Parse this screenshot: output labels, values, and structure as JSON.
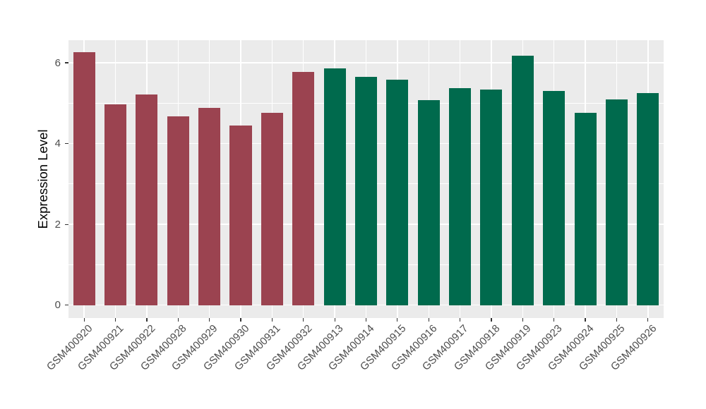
{
  "chart_data": {
    "type": "bar",
    "title": "",
    "ylabel": "Expression Level",
    "xlabel": "",
    "categories": [
      "GSM400920",
      "GSM400921",
      "GSM400922",
      "GSM400928",
      "GSM400929",
      "GSM400930",
      "GSM400931",
      "GSM400932",
      "GSM400913",
      "GSM400914",
      "GSM400915",
      "GSM400916",
      "GSM400917",
      "GSM400918",
      "GSM400919",
      "GSM400923",
      "GSM400924",
      "GSM400925",
      "GSM400926"
    ],
    "values": [
      6.26,
      4.97,
      5.22,
      4.68,
      4.89,
      4.45,
      4.76,
      5.77,
      5.87,
      5.65,
      5.59,
      5.07,
      5.38,
      5.34,
      6.18,
      5.31,
      4.77,
      5.1,
      5.25
    ],
    "bar_groups": [
      "group1",
      "group1",
      "group1",
      "group1",
      "group1",
      "group1",
      "group1",
      "group1",
      "group2",
      "group2",
      "group2",
      "group2",
      "group2",
      "group2",
      "group2",
      "group2",
      "group2",
      "group2",
      "group2"
    ],
    "group_colors": {
      "group1": "#9B4350",
      "group2": "#006A4D"
    },
    "yticks": [
      0,
      2,
      4,
      6
    ],
    "minor_yticks": [
      1,
      3,
      5
    ],
    "ylim": [
      -0.32,
      6.56
    ],
    "bar_width_fraction": 0.7,
    "grid": "on",
    "legend_position": "none",
    "panel_background": "#EBEBEB",
    "grid_color": "#FFFFFF",
    "axis_text_color": "#4D4D4D",
    "axis_title_color": "#000000",
    "tick_mark_color": "#333333",
    "outer_background": "#FFFFFF"
  }
}
